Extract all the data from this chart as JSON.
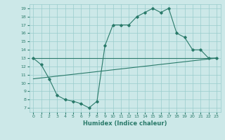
{
  "bg_color": "#cce8e8",
  "grid_color": "#99cccc",
  "line_color": "#2a7a6a",
  "xlabel": "Humidex (Indice chaleur)",
  "xlim": [
    -0.5,
    23.5
  ],
  "ylim": [
    6.5,
    19.5
  ],
  "yticks": [
    7,
    8,
    9,
    10,
    11,
    12,
    13,
    14,
    15,
    16,
    17,
    18,
    19
  ],
  "xticks": [
    0,
    1,
    2,
    3,
    4,
    5,
    6,
    7,
    8,
    9,
    10,
    11,
    12,
    13,
    14,
    15,
    16,
    17,
    18,
    19,
    20,
    21,
    22,
    23
  ],
  "curve_x": [
    0,
    1,
    2,
    3,
    4,
    5,
    6,
    7,
    8,
    9,
    10,
    11,
    12,
    13,
    14,
    15,
    16,
    17,
    18,
    19,
    20,
    21,
    22,
    23
  ],
  "curve_y": [
    13.0,
    12.2,
    10.5,
    8.5,
    8.0,
    7.8,
    7.5,
    7.0,
    7.8,
    14.5,
    17.0,
    17.0,
    17.0,
    18.0,
    18.5,
    19.0,
    18.5,
    19.0,
    16.0,
    15.5,
    14.0,
    14.0,
    13.0,
    13.0
  ],
  "line1_x": [
    0,
    23
  ],
  "line1_y": [
    13.0,
    13.0
  ],
  "line2_x": [
    0,
    23
  ],
  "line2_y": [
    10.5,
    13.0
  ]
}
